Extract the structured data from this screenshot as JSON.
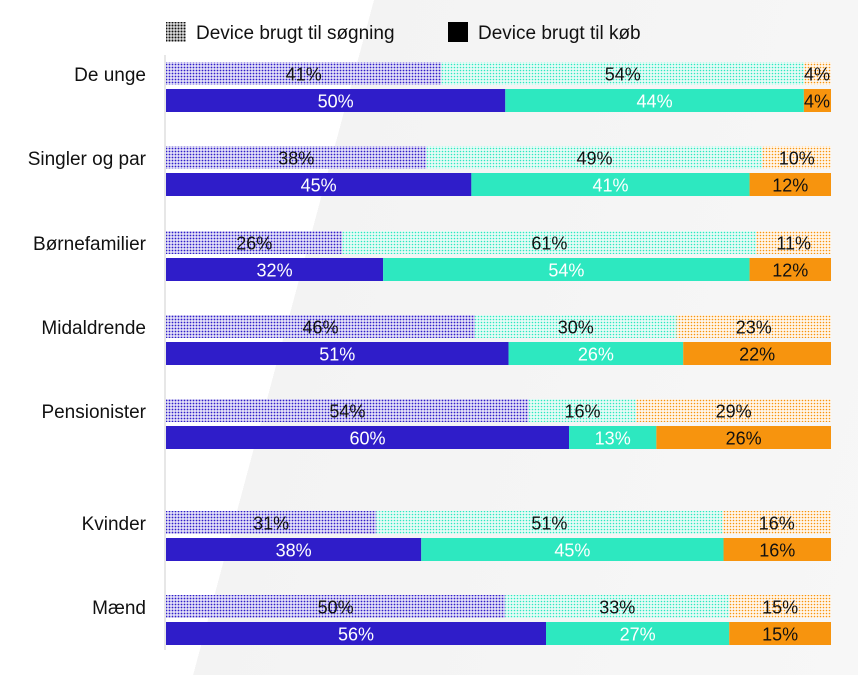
{
  "legend": {
    "search": {
      "label": "Device brugt til søgning",
      "swatch": "dotted"
    },
    "buy": {
      "label": "Device brugt til køb",
      "swatch": "solid"
    }
  },
  "colors": {
    "blue": "#2f1dc9",
    "teal": "#2de8c0",
    "orange": "#f7940e"
  },
  "chart_data": {
    "type": "bar",
    "orientation": "horizontal",
    "stacked": true,
    "normalized_to": 100,
    "unit": "%",
    "categories": [
      "De unge",
      "Singler og par",
      "Børnefamilier",
      "Midaldrende",
      "Pensionister",
      "Kvinder",
      "Mænd"
    ],
    "series": [
      {
        "name": "Device brugt til søgning",
        "segments": [
          [
            41,
            54,
            4
          ],
          [
            38,
            49,
            10
          ],
          [
            26,
            61,
            11
          ],
          [
            46,
            30,
            23
          ],
          [
            54,
            16,
            29
          ],
          [
            31,
            51,
            16
          ],
          [
            50,
            33,
            15
          ]
        ]
      },
      {
        "name": "Device brugt til køb",
        "segments": [
          [
            50,
            44,
            4
          ],
          [
            45,
            41,
            12
          ],
          [
            32,
            54,
            12
          ],
          [
            51,
            26,
            22
          ],
          [
            60,
            13,
            26
          ],
          [
            38,
            45,
            16
          ],
          [
            56,
            27,
            15
          ]
        ]
      }
    ],
    "segment_colors": [
      "blue",
      "teal",
      "orange"
    ],
    "xlim": [
      0,
      100
    ],
    "grid": false,
    "legend_position": "top"
  }
}
